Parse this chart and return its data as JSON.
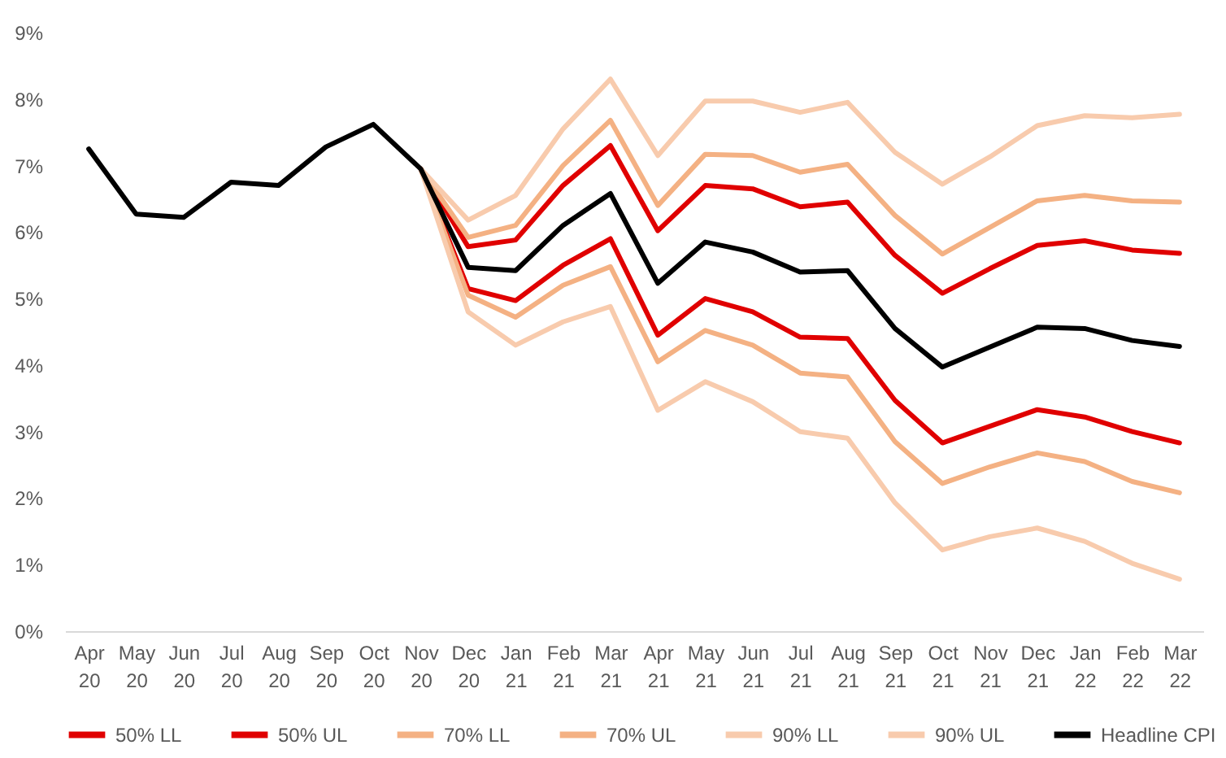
{
  "chart_data": {
    "type": "line",
    "categories": [
      "Apr 20",
      "May 20",
      "Jun 20",
      "Jul 20",
      "Aug 20",
      "Sep 20",
      "Oct 20",
      "Nov 20",
      "Dec 20",
      "Jan 21",
      "Feb 21",
      "Mar 21",
      "Apr 21",
      "May 21",
      "Jun 21",
      "Jul 21",
      "Aug 21",
      "Sep 21",
      "Oct 21",
      "Nov 21",
      "Dec 21",
      "Jan 22",
      "Feb 22",
      "Mar 22"
    ],
    "series": [
      {
        "name": "50% LL",
        "color": "#e00000",
        "values": [
          null,
          null,
          null,
          null,
          null,
          null,
          null,
          6.95,
          5.15,
          4.97,
          5.5,
          5.9,
          4.45,
          5.0,
          4.8,
          4.42,
          4.4,
          3.47,
          2.83,
          3.08,
          3.33,
          3.22,
          3.0,
          2.83
        ]
      },
      {
        "name": "50% UL",
        "color": "#e00000",
        "values": [
          null,
          null,
          null,
          null,
          null,
          null,
          null,
          6.95,
          5.78,
          5.88,
          6.7,
          7.3,
          6.02,
          6.7,
          6.65,
          6.38,
          6.45,
          5.65,
          5.08,
          5.45,
          5.8,
          5.87,
          5.73,
          5.68
        ]
      },
      {
        "name": "70% LL",
        "color": "#f4b183",
        "values": [
          null,
          null,
          null,
          null,
          null,
          null,
          null,
          6.95,
          5.05,
          4.72,
          5.2,
          5.48,
          4.05,
          4.52,
          4.3,
          3.88,
          3.82,
          2.85,
          2.22,
          2.47,
          2.68,
          2.55,
          2.25,
          2.08
        ]
      },
      {
        "name": "70% UL",
        "color": "#f4b183",
        "values": [
          null,
          null,
          null,
          null,
          null,
          null,
          null,
          6.95,
          5.92,
          6.1,
          7.0,
          7.68,
          6.4,
          7.17,
          7.15,
          6.9,
          7.02,
          6.25,
          5.67,
          6.07,
          6.47,
          6.55,
          6.47,
          6.45
        ]
      },
      {
        "name": "90% LL",
        "color": "#f8cbad",
        "values": [
          null,
          null,
          null,
          null,
          null,
          null,
          null,
          6.95,
          4.8,
          4.3,
          4.65,
          4.88,
          3.32,
          3.75,
          3.45,
          3.0,
          2.9,
          1.93,
          1.22,
          1.42,
          1.55,
          1.35,
          1.02,
          0.78
        ]
      },
      {
        "name": "90% UL",
        "color": "#f8cbad",
        "values": [
          null,
          null,
          null,
          null,
          null,
          null,
          null,
          6.95,
          6.18,
          6.55,
          7.55,
          8.3,
          7.15,
          7.97,
          7.97,
          7.8,
          7.95,
          7.2,
          6.72,
          7.13,
          7.6,
          7.75,
          7.72,
          7.77
        ]
      },
      {
        "name": "Headline CPI",
        "color": "#000000",
        "values": [
          7.25,
          6.27,
          6.22,
          6.75,
          6.7,
          7.28,
          7.62,
          6.95,
          5.47,
          5.42,
          6.1,
          6.58,
          5.23,
          5.85,
          5.7,
          5.4,
          5.42,
          4.55,
          3.97,
          4.27,
          4.57,
          4.55,
          4.37,
          4.28
        ]
      }
    ],
    "ylim": [
      0,
      9
    ],
    "yticks": [
      {
        "value": 0,
        "label": "0%"
      },
      {
        "value": 1,
        "label": "1%"
      },
      {
        "value": 2,
        "label": "2%"
      },
      {
        "value": 3,
        "label": "3%"
      },
      {
        "value": 4,
        "label": "4%"
      },
      {
        "value": 5,
        "label": "5%"
      },
      {
        "value": 6,
        "label": "6%"
      },
      {
        "value": 7,
        "label": "7%"
      },
      {
        "value": 8,
        "label": "8%"
      },
      {
        "value": 9,
        "label": "9%"
      }
    ],
    "grid": false,
    "legend": "bottom",
    "marker": "none",
    "line_style": "solid"
  }
}
